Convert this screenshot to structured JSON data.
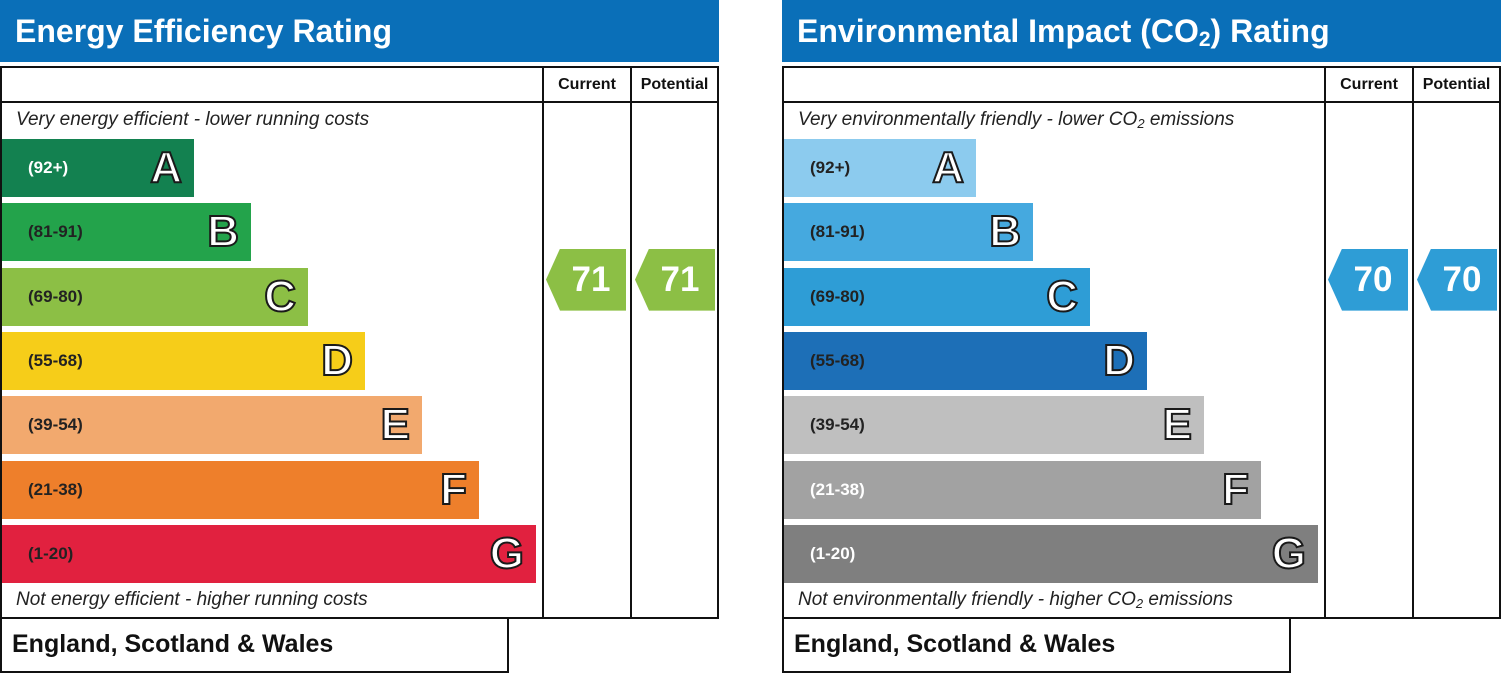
{
  "chart_data": [
    {
      "type": "bar",
      "title": "Energy Efficiency Rating",
      "columns": [
        "Current",
        "Potential"
      ],
      "top_note": "Very energy efficient - lower running costs",
      "bottom_note": "Not energy efficient - higher running costs",
      "footer": "England, Scotland & Wales",
      "bands": [
        {
          "letter": "A",
          "range": "(92+)",
          "color": "#138150"
        },
        {
          "letter": "B",
          "range": "(81-91)",
          "color": "#23a34b"
        },
        {
          "letter": "C",
          "range": "(69-80)",
          "color": "#8cbf45"
        },
        {
          "letter": "D",
          "range": "(55-68)",
          "color": "#f6cd19"
        },
        {
          "letter": "E",
          "range": "(39-54)",
          "color": "#f2a96e"
        },
        {
          "letter": "F",
          "range": "(21-38)",
          "color": "#ee7f2b"
        },
        {
          "letter": "G",
          "range": "(1-20)",
          "color": "#e1213f"
        }
      ],
      "current": {
        "value": 71,
        "band": "C",
        "color": "#8cbf45"
      },
      "potential": {
        "value": 71,
        "band": "C",
        "color": "#8cbf45"
      }
    },
    {
      "type": "bar",
      "title": "Environmental Impact (CO",
      "title_sub": "2",
      "title_end": ") Rating",
      "columns": [
        "Current",
        "Potential"
      ],
      "top_note": "Very environmentally friendly - lower CO",
      "top_note_sub": "2",
      "top_note_end": " emissions",
      "bottom_note": "Not environmentally friendly - higher CO",
      "bottom_note_sub": "2",
      "bottom_note_end": " emissions",
      "footer": "England, Scotland & Wales",
      "bands": [
        {
          "letter": "A",
          "range": "(92+)",
          "color": "#8ccbee"
        },
        {
          "letter": "B",
          "range": "(81-91)",
          "color": "#45a9df"
        },
        {
          "letter": "C",
          "range": "(69-80)",
          "color": "#2e9dd6"
        },
        {
          "letter": "D",
          "range": "(55-68)",
          "color": "#1d6fb7"
        },
        {
          "letter": "E",
          "range": "(39-54)",
          "color": "#bfbfbf"
        },
        {
          "letter": "F",
          "range": "(21-38)",
          "color": "#a2a2a2"
        },
        {
          "letter": "G",
          "range": "(1-20)",
          "color": "#7f7f7f"
        }
      ],
      "current": {
        "value": 70,
        "band": "C",
        "color": "#2e9dd6"
      },
      "potential": {
        "value": 70,
        "band": "C",
        "color": "#2e9dd6"
      }
    }
  ]
}
